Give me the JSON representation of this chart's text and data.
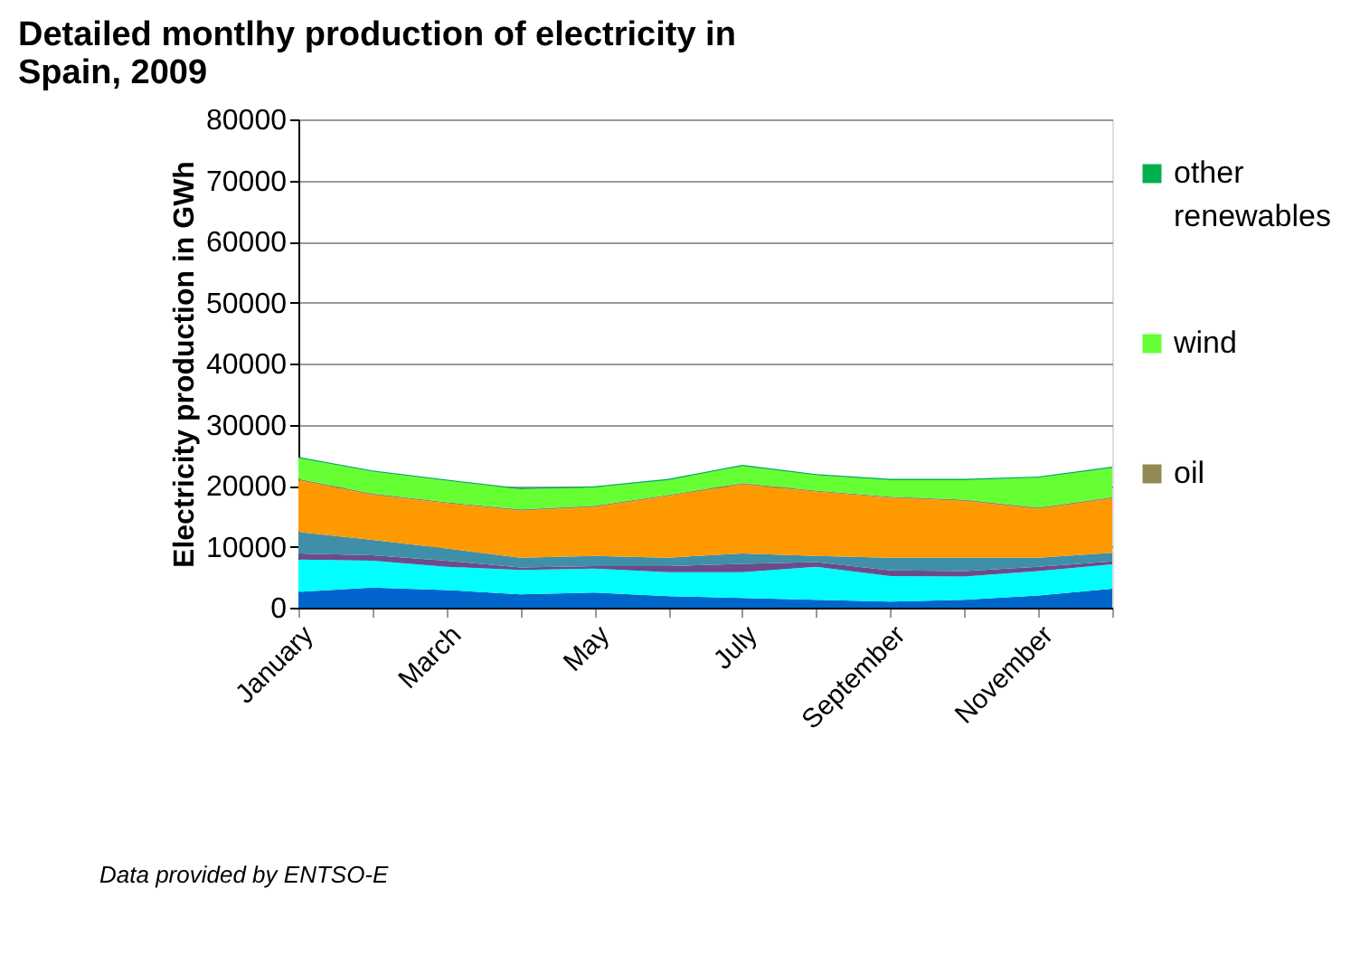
{
  "chart_data": {
    "type": "area",
    "stacked": true,
    "title": "Detailed montlhy production of electricity in Spain, 2009",
    "ylabel": "Electricity production in GWh",
    "categories": [
      "January",
      null,
      "March",
      null,
      "May",
      null,
      "July",
      null,
      "September",
      null,
      "November",
      null
    ],
    "series": [
      {
        "color": "#0066cc",
        "values": [
          2600,
          3300,
          2900,
          2200,
          2500,
          1900,
          1600,
          1300,
          1000,
          1300,
          2000,
          3100
        ]
      },
      {
        "color": "#00ffff",
        "values": [
          5300,
          4400,
          3800,
          4000,
          3900,
          3900,
          4200,
          5400,
          4200,
          3800,
          4000,
          4000
        ]
      },
      {
        "color": "#6b4c8a",
        "values": [
          1000,
          900,
          1000,
          400,
          400,
          1000,
          1400,
          800,
          900,
          900,
          700,
          500
        ]
      },
      {
        "color": "#3f8fa8",
        "values": [
          3500,
          2500,
          2000,
          1600,
          1700,
          1400,
          1700,
          1000,
          2100,
          2200,
          1500,
          1400
        ]
      },
      {
        "color": "#ff9900",
        "values": [
          8500,
          7400,
          7400,
          7700,
          8000,
          10100,
          11300,
          10500,
          9800,
          9300,
          8000,
          8900
        ]
      },
      {
        "name": "oil",
        "color": "#938953",
        "values": [
          200,
          200,
          200,
          200,
          200,
          200,
          200,
          200,
          200,
          200,
          200,
          200
        ]
      },
      {
        "name": "wind",
        "color": "#66ff33",
        "values": [
          3400,
          3600,
          3500,
          3300,
          3000,
          2400,
          2800,
          2500,
          2700,
          3200,
          4900,
          4800
        ]
      },
      {
        "name": "other renewables",
        "color": "#00b050",
        "values": [
          200,
          200,
          200,
          200,
          200,
          200,
          200,
          200,
          200,
          200,
          200,
          200
        ]
      }
    ],
    "ylim": [
      0,
      80000
    ],
    "yticks": [
      0,
      10000,
      20000,
      30000,
      40000,
      50000,
      60000,
      70000,
      80000
    ],
    "grid": "y",
    "legend": "right",
    "annotations": [
      "Data provided by ENTSO-E"
    ]
  }
}
